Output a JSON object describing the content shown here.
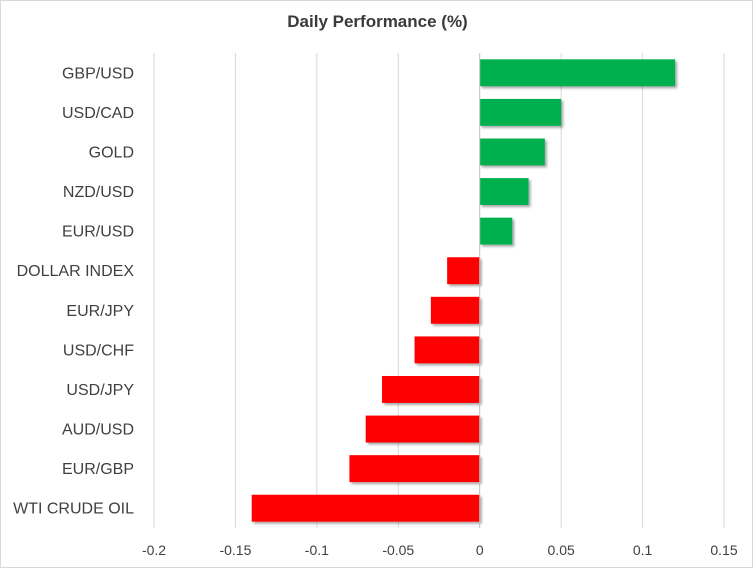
{
  "chart_data": {
    "type": "bar",
    "orientation": "horizontal",
    "title": "Daily Performance (%)",
    "xlabel": "",
    "ylabel": "",
    "categories": [
      "GBP/USD",
      "USD/CAD",
      "GOLD",
      "NZD/USD",
      "EUR/USD",
      "DOLLAR INDEX",
      "EUR/JPY",
      "USD/CHF",
      "USD/JPY",
      "AUD/USD",
      "EUR/GBP",
      "WTI CRUDE OIL"
    ],
    "values": [
      0.12,
      0.05,
      0.04,
      0.03,
      0.02,
      -0.02,
      -0.03,
      -0.04,
      -0.06,
      -0.07,
      -0.08,
      -0.14
    ],
    "xlim": [
      -0.2,
      0.15
    ],
    "xticks": [
      -0.2,
      -0.15,
      -0.1,
      -0.05,
      0,
      0.05,
      0.1,
      0.15
    ],
    "xtick_labels": [
      "-0.2",
      "-0.15",
      "-0.1",
      "-0.05",
      "0",
      "0.05",
      "0.1",
      "0.15"
    ],
    "grid": "vertical",
    "legend": "none",
    "colors": {
      "positive": "#00b050",
      "negative": "#ff0000",
      "grid": "#d9d9d9",
      "text": "#404040"
    }
  }
}
